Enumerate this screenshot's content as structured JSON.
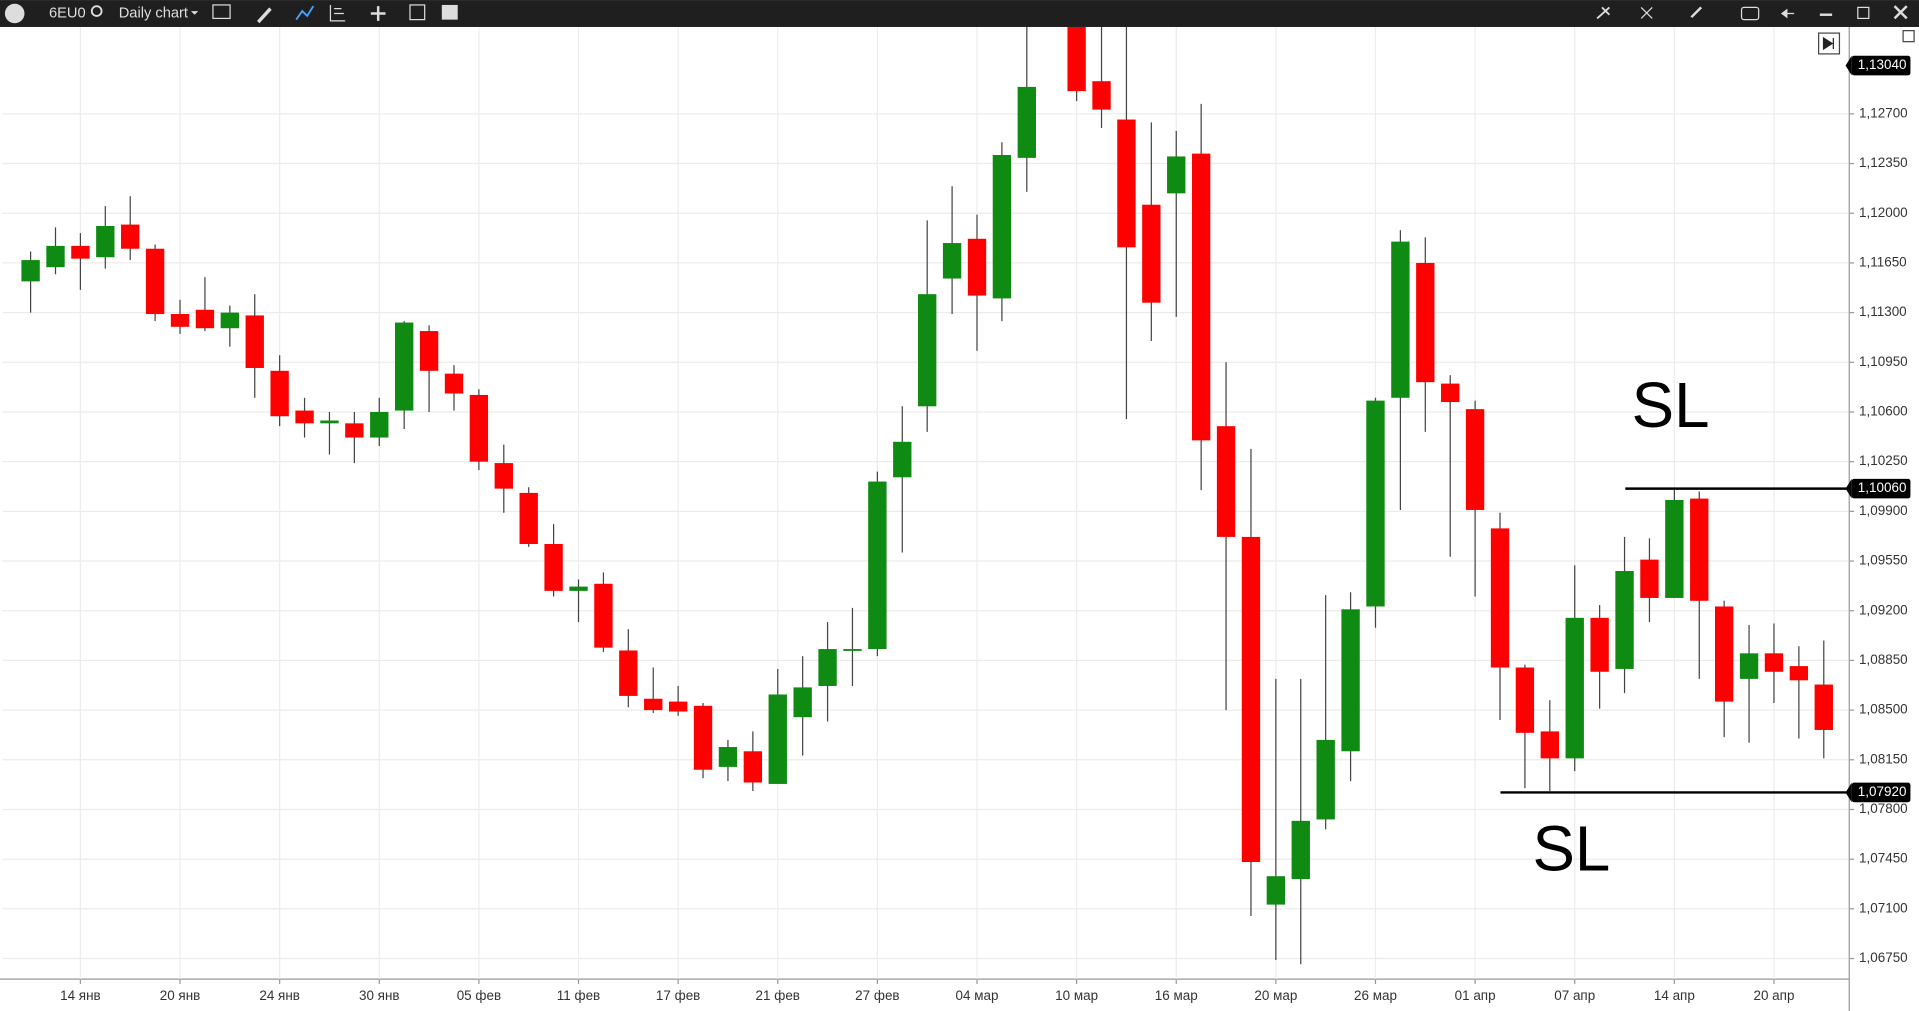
{
  "toolbar": {
    "symbol": "6EU0",
    "timeframe": "Daily chart"
  },
  "chart_data": {
    "type": "candlestick",
    "categories": [
      null,
      null,
      "14 янв",
      null,
      null,
      null,
      "20 янв",
      null,
      null,
      null,
      "24 янв",
      null,
      null,
      null,
      "30 янв",
      null,
      null,
      null,
      "05 фев",
      null,
      null,
      null,
      "11 фев",
      null,
      null,
      null,
      "17 фев",
      null,
      null,
      null,
      "21 фев",
      null,
      null,
      null,
      "27 фев",
      null,
      null,
      null,
      "04 мар",
      null,
      null,
      null,
      "10 мар",
      null,
      null,
      null,
      "16 мар",
      null,
      null,
      null,
      "20 мар",
      null,
      null,
      null,
      "26 мар",
      null,
      null,
      null,
      "01 апр",
      null,
      null,
      null,
      "07 апр",
      null,
      null,
      null,
      "14 апр",
      null,
      null,
      null,
      "20 апр",
      null,
      null
    ],
    "open": [
      1.1152,
      1.1162,
      1.1177,
      1.1169,
      1.1192,
      1.1175,
      1.1129,
      1.1132,
      1.1119,
      1.1128,
      1.1089,
      1.1061,
      1.1052,
      1.1052,
      1.1042,
      1.1061,
      1.1117,
      1.1087,
      1.1072,
      1.1024,
      1.1003,
      1.0967,
      1.0934,
      1.0939,
      1.0892,
      1.0858,
      1.0856,
      1.0853,
      1.081,
      1.0821,
      1.0798,
      1.0845,
      1.0867,
      1.0892,
      1.0893,
      1.1014,
      1.1064,
      1.1154,
      1.1182,
      1.114,
      1.1239,
      null,
      1.1338,
      1.1293,
      1.1266,
      1.1206,
      1.1214,
      1.1242,
      1.105,
      1.0972,
      1.0713,
      1.0731,
      1.0773,
      1.0821,
      1.0923,
      1.107,
      1.1165,
      1.108,
      1.1062,
      1.0978,
      1.088,
      1.0835,
      1.0816,
      1.0915,
      1.0879,
      1.0956,
      1.0929,
      1.0999,
      1.0923,
      1.0872,
      1.089,
      1.0881,
      1.0868
    ],
    "high": [
      1.1173,
      1.119,
      1.1186,
      1.1205,
      1.1212,
      1.1178,
      1.1139,
      1.1155,
      1.1135,
      1.1143,
      1.11,
      1.107,
      1.106,
      1.106,
      1.107,
      1.1124,
      1.1121,
      1.1093,
      1.1076,
      1.1037,
      1.1007,
      1.0981,
      1.0942,
      1.0947,
      1.0907,
      1.088,
      1.0867,
      1.0855,
      1.0829,
      1.0835,
      1.0879,
      1.0888,
      1.0912,
      1.0922,
      1.1018,
      1.1064,
      1.1195,
      1.1219,
      1.1199,
      1.125,
      1.1345,
      null,
      1.135,
      1.1345,
      1.1345,
      1.1264,
      1.1258,
      1.1277,
      1.1095,
      1.1034,
      1.0872,
      1.0872,
      1.0931,
      1.0933,
      1.107,
      1.1188,
      1.1183,
      1.1086,
      1.1068,
      1.0989,
      1.0882,
      1.0857,
      1.0952,
      1.0924,
      1.0972,
      1.0971,
      1.1005,
      1.1004,
      1.0927,
      1.091,
      1.0911,
      1.0895,
      1.0899
    ],
    "low": [
      1.113,
      1.1157,
      1.1146,
      1.1161,
      1.1167,
      1.1124,
      1.1115,
      1.1117,
      1.1106,
      1.107,
      1.105,
      1.1042,
      1.103,
      1.1024,
      1.1036,
      1.1048,
      1.106,
      1.1061,
      1.1019,
      1.0989,
      1.0965,
      1.093,
      1.0912,
      1.0891,
      1.0852,
      1.0848,
      1.0846,
      1.0802,
      1.08,
      1.0793,
      1.0798,
      1.0818,
      1.0842,
      1.0867,
      1.0888,
      1.0961,
      1.1046,
      1.1129,
      1.1103,
      1.1124,
      1.1215,
      null,
      1.1279,
      1.126,
      1.1055,
      1.111,
      1.1127,
      1.1005,
      1.085,
      1.0705,
      1.0674,
      1.0671,
      1.0766,
      1.08,
      1.0908,
      1.0991,
      1.1046,
      1.0958,
      1.093,
      1.0843,
      1.0795,
      1.0793,
      1.0807,
      1.0851,
      1.0862,
      1.0912,
      1.0929,
      1.0872,
      1.0831,
      1.0827,
      1.0855,
      1.083,
      1.0816
    ],
    "close": [
      1.1167,
      1.1177,
      1.1168,
      1.1191,
      1.1175,
      1.1129,
      1.112,
      1.1119,
      1.113,
      1.1091,
      1.1057,
      1.1052,
      1.1054,
      1.1042,
      1.106,
      1.1123,
      1.1089,
      1.1073,
      1.1025,
      1.1006,
      1.0967,
      1.0934,
      1.0937,
      1.0894,
      1.086,
      1.085,
      1.0849,
      1.0808,
      1.0824,
      1.0799,
      1.0861,
      1.0866,
      1.0893,
      1.0893,
      1.1011,
      1.1039,
      1.1143,
      1.1179,
      1.1142,
      1.1241,
      1.1289,
      null,
      1.1286,
      1.1273,
      1.1176,
      1.1137,
      1.124,
      1.104,
      1.0972,
      1.0743,
      1.0733,
      1.0772,
      1.0829,
      1.0921,
      1.1068,
      1.118,
      1.1081,
      1.1067,
      1.0991,
      1.088,
      1.0834,
      1.0816,
      1.0915,
      1.0877,
      1.0948,
      1.0929,
      1.0998,
      1.0927,
      1.0856,
      1.089,
      1.0877,
      1.0871,
      1.0836
    ],
    "up_color": "#0f8a12",
    "down_color": "#ff0000",
    "ylim": [
      1.06605,
      1.13312
    ],
    "yticks": [
      {
        "value": 1.127,
        "label": "1,12700"
      },
      {
        "value": 1.1235,
        "label": "1,12350"
      },
      {
        "value": 1.12,
        "label": "1,12000"
      },
      {
        "value": 1.1165,
        "label": "1,11650"
      },
      {
        "value": 1.113,
        "label": "1,11300"
      },
      {
        "value": 1.1095,
        "label": "1,10950"
      },
      {
        "value": 1.106,
        "label": "1,10600"
      },
      {
        "value": 1.1025,
        "label": "1,10250"
      },
      {
        "value": 1.099,
        "label": "1,09900"
      },
      {
        "value": 1.0955,
        "label": "1,09550"
      },
      {
        "value": 1.092,
        "label": "1,09200"
      },
      {
        "value": 1.0885,
        "label": "1,08850"
      },
      {
        "value": 1.085,
        "label": "1,08500"
      },
      {
        "value": 1.0815,
        "label": "1,08150"
      },
      {
        "value": 1.078,
        "label": "1,07800"
      },
      {
        "value": 1.0745,
        "label": "1,07450"
      },
      {
        "value": 1.071,
        "label": "1,07100"
      },
      {
        "value": 1.0675,
        "label": "1,06750"
      }
    ],
    "grid": true,
    "last_price": {
      "value": 1.1304,
      "label": "1,13040"
    },
    "levels": [
      {
        "value": 1.1006,
        "label": "1,10060",
        "text": "SL"
      },
      {
        "value": 1.0792,
        "label": "1,07920",
        "text": "SL"
      }
    ]
  }
}
